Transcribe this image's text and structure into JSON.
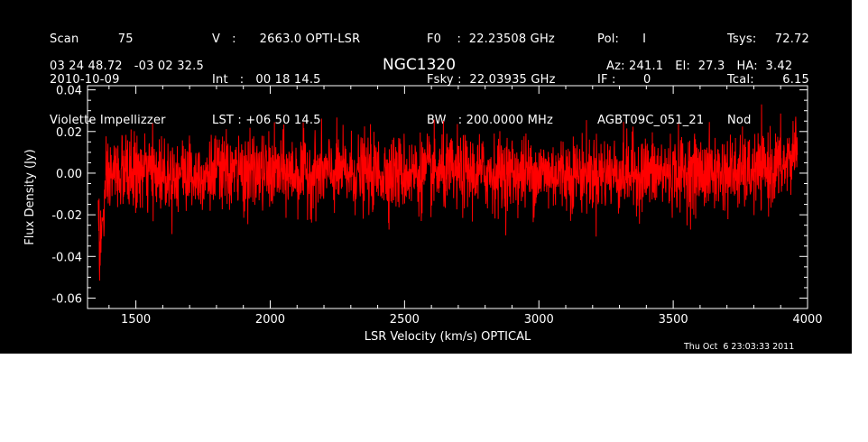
{
  "header": {
    "col1": [
      "Scan          75",
      "2010-10-09",
      "Violette Impellizzer"
    ],
    "col2": [
      "V   :      2663.0 OPTI-LSR",
      "Int   :   00 18 14.5",
      "LST : +06 50 14.5"
    ],
    "col3": [
      "F0    :  22.23508 GHz",
      "Fsky :  22.03935 GHz",
      "BW   : 200.0000 MHz"
    ],
    "col4": [
      "Pol:      I",
      "IF :       0",
      "AGBT09C_051_21"
    ],
    "col5": [
      "Tsys:",
      "Tcal:",
      "Nod"
    ],
    "col6": [
      "72.72",
      "6.15",
      ""
    ],
    "coords": "03 24 48.72   -03 02 32.5",
    "source": "NGC1320",
    "azelha": "Az: 241.1   El:  27.3   HA:  3.42",
    "timestamp": "Thu Oct  6 23:03:33 2011"
  },
  "chart_data": {
    "type": "line",
    "title": "NGC1320",
    "xlabel": "LSR Velocity (km/s) OPTICAL",
    "ylabel": "Flux Density (Jy)",
    "xlim": [
      1320,
      4000
    ],
    "ylim": [
      -0.065,
      0.042
    ],
    "xticks": [
      1500,
      2000,
      2500,
      3000,
      3500,
      4000
    ],
    "xtick_labels": [
      "1500",
      "2000",
      "2500",
      "3000",
      "3500",
      "4000"
    ],
    "yticks": [
      -0.06,
      -0.04,
      -0.02,
      0.0,
      0.02,
      0.04
    ],
    "ytick_labels": [
      "-0.06",
      "-0.04",
      "-0.02",
      "0.00",
      "0.02",
      "0.04"
    ],
    "grid": false,
    "colors": {
      "background": "#000000",
      "axes": "#ffffff",
      "series": "#ff0000"
    },
    "series": [
      {
        "x_start": 1360,
        "x_end": 3962,
        "noise_rms": 0.009,
        "envelope": {
          "x": [
            1360,
            1365,
            1375,
            1390,
            1410,
            1450,
            1600,
            2500,
            3800,
            3920,
            3950,
            3962
          ],
          "baseline": [
            -0.01,
            -0.038,
            -0.025,
            -0.008,
            0.0,
            0.0,
            0.0,
            0.0,
            0.0,
            0.004,
            0.01,
            0.02
          ]
        }
      }
    ]
  }
}
